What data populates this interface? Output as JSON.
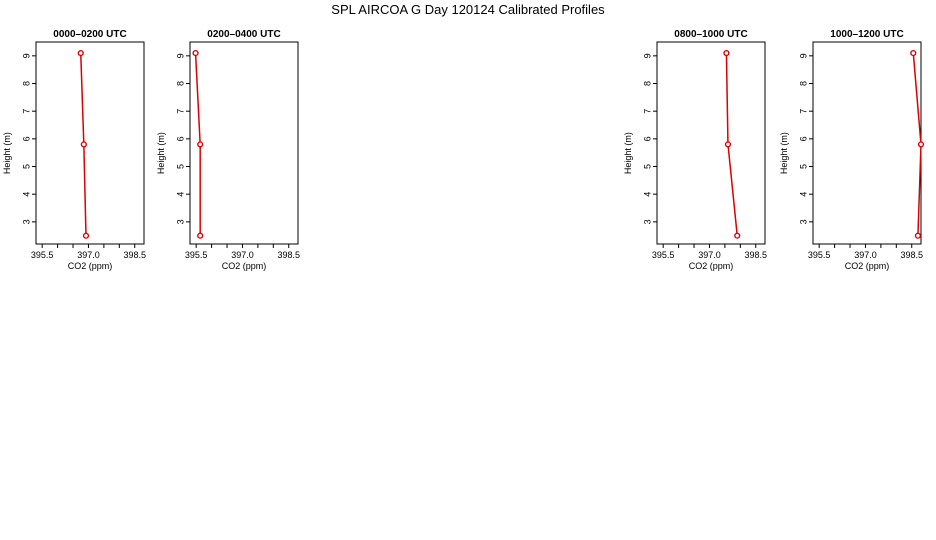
{
  "page_title": "SPL AIRCOA G  Day 120124  Calibrated Profiles",
  "line_color": "#dd0000",
  "chart_data": [
    {
      "type": "line",
      "title": "0000–0200 UTC",
      "xlabel": "CO2 (ppm)",
      "ylabel": "Height (m)",
      "xlim": [
        395.3,
        398.8
      ],
      "ylim": [
        2.2,
        9.5
      ],
      "xticks": [
        "395.5",
        "397.0",
        "398.5"
      ],
      "yticks": [
        "3",
        "4",
        "5",
        "6",
        "7",
        "8",
        "9"
      ],
      "series": [
        {
          "x": [
            396.75,
            396.85,
            396.92
          ],
          "y": [
            9.1,
            5.8,
            2.5
          ]
        }
      ]
    },
    {
      "type": "line",
      "title": "0200–0400 UTC",
      "xlabel": "CO2 (ppm)",
      "ylabel": "Height (m)",
      "xlim": [
        395.3,
        398.8
      ],
      "ylim": [
        2.2,
        9.5
      ],
      "xticks": [
        "395.5",
        "397.0",
        "398.5"
      ],
      "yticks": [
        "3",
        "4",
        "5",
        "6",
        "7",
        "8",
        "9"
      ],
      "series": [
        {
          "x": [
            395.48,
            395.63,
            395.63
          ],
          "y": [
            9.1,
            5.8,
            2.5
          ]
        }
      ]
    },
    {
      "type": "line",
      "title": "0800–1000 UTC",
      "xlabel": "CO2 (ppm)",
      "ylabel": "Height (m)",
      "xlim": [
        395.3,
        398.8
      ],
      "ylim": [
        2.2,
        9.5
      ],
      "xticks": [
        "395.5",
        "397.0",
        "398.5"
      ],
      "yticks": [
        "3",
        "4",
        "5",
        "6",
        "7",
        "8",
        "9"
      ],
      "series": [
        {
          "x": [
            397.55,
            397.6,
            397.9
          ],
          "y": [
            9.1,
            5.8,
            2.5
          ]
        }
      ]
    },
    {
      "type": "line",
      "title": "1000–1200 UTC",
      "xlabel": "CO2 (ppm)",
      "ylabel": "Height (m)",
      "xlim": [
        395.3,
        398.8
      ],
      "ylim": [
        2.2,
        9.5
      ],
      "xticks": [
        "395.5",
        "397.0",
        "398.5"
      ],
      "yticks": [
        "3",
        "4",
        "5",
        "6",
        "7",
        "8",
        "9"
      ],
      "series": [
        {
          "x": [
            398.55,
            398.8,
            398.7
          ],
          "y": [
            9.1,
            5.8,
            2.5
          ]
        }
      ]
    }
  ]
}
